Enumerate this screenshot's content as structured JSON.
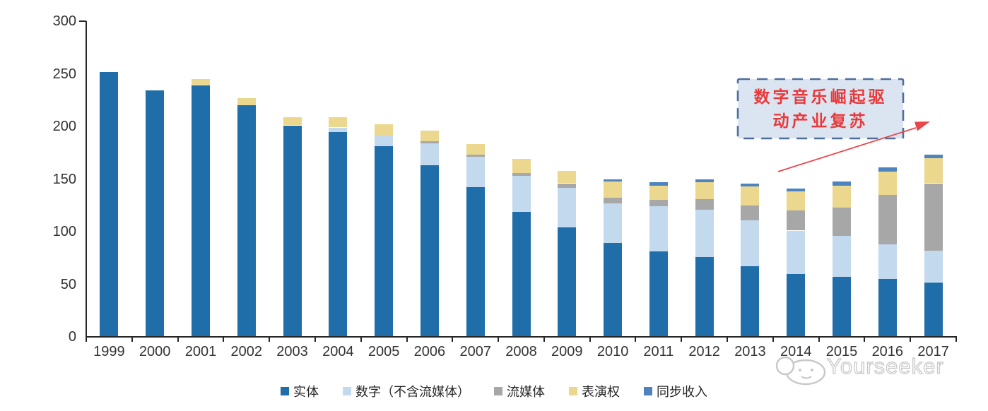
{
  "chart_data": {
    "type": "bar",
    "stacked": true,
    "categories": [
      "1999",
      "2000",
      "2001",
      "2002",
      "2003",
      "2004",
      "2005",
      "2006",
      "2007",
      "2008",
      "2009",
      "2010",
      "2011",
      "2012",
      "2013",
      "2014",
      "2015",
      "2016",
      "2017"
    ],
    "series": [
      {
        "name": "实体",
        "color": "#1F6DA9",
        "values": [
          252,
          234,
          239,
          220,
          201,
          195,
          181,
          163,
          142,
          119,
          104,
          89,
          81,
          76,
          67,
          60,
          57,
          55,
          52
        ]
      },
      {
        "name": "数字（不含流媒体）",
        "color": "#C3D9EE",
        "values": [
          0,
          0,
          0,
          0,
          0,
          4,
          11,
          21,
          29,
          34,
          38,
          38,
          43,
          45,
          44,
          41,
          39,
          33,
          30
        ]
      },
      {
        "name": "流媒体",
        "color": "#A7A7A7",
        "values": [
          0,
          0,
          0,
          0,
          0,
          0,
          0,
          2,
          2,
          3,
          4,
          5,
          6,
          10,
          14,
          19,
          27,
          47,
          64
        ]
      },
      {
        "name": "表演权",
        "color": "#EBD78D",
        "values": [
          0,
          0,
          6,
          7,
          8,
          10,
          10,
          10,
          10,
          13,
          12,
          16,
          14,
          16,
          18,
          18,
          21,
          22,
          24
        ]
      },
      {
        "name": "同步收入",
        "color": "#4D84C0",
        "values": [
          0,
          0,
          0,
          0,
          0,
          0,
          0,
          0,
          0,
          0,
          0,
          2,
          3,
          3,
          3,
          3,
          4,
          4,
          3
        ]
      }
    ],
    "ylim": [
      0,
      300
    ],
    "yticks": [
      0,
      50,
      100,
      150,
      200,
      250,
      300
    ],
    "grid": false,
    "legend_position": "bottom",
    "axis_color": "#262626"
  },
  "annotation": {
    "line1": "数字音乐崛起驱",
    "line2": "动产业复苏",
    "fill": "#DBE5F1",
    "border_color": "#4E6E9C",
    "text_color": "#E8393B",
    "arrow_color": "#E8474B"
  },
  "watermark": {
    "text": "Yourseeker"
  }
}
